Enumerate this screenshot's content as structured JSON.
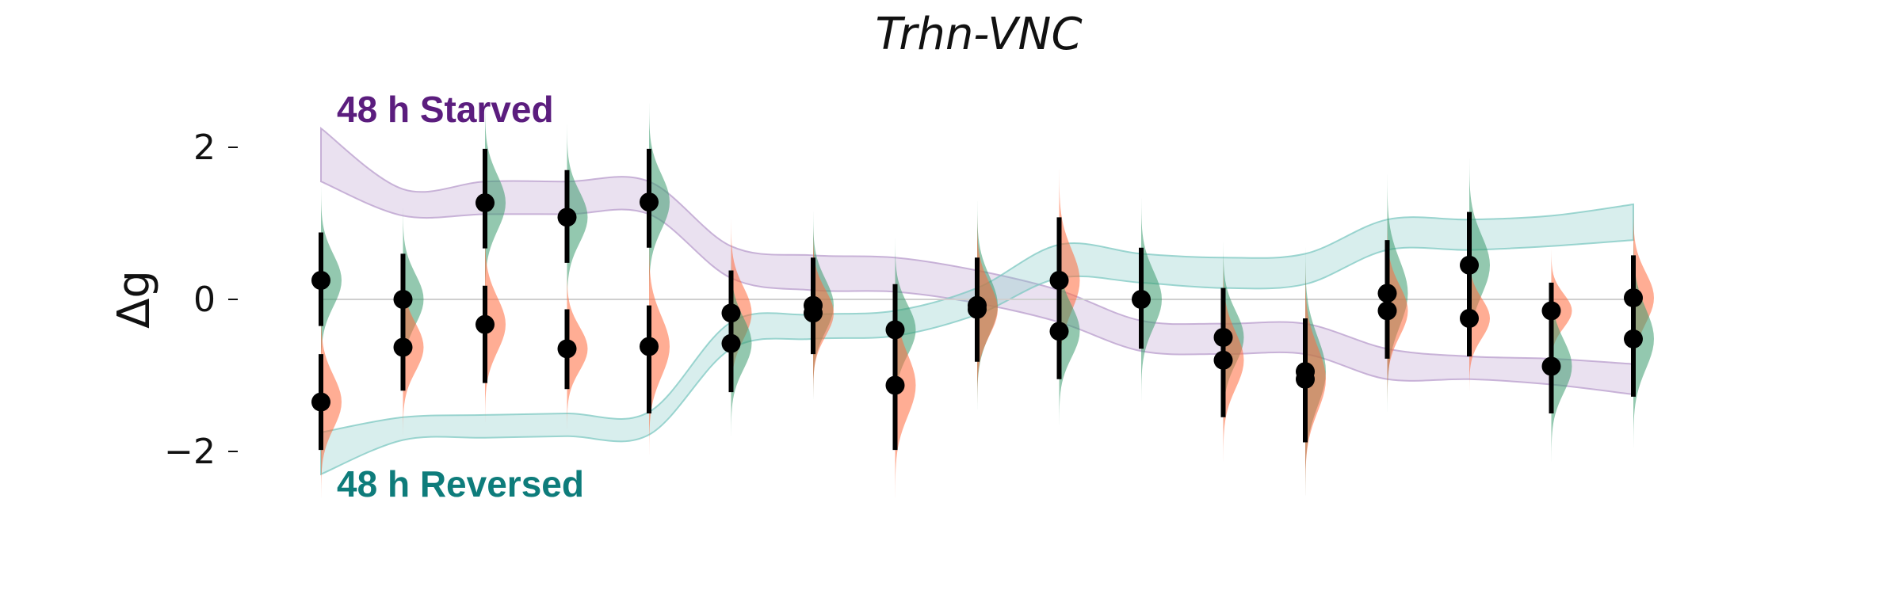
{
  "chart_data": {
    "type": "scatter",
    "title": "Trhn-VNC",
    "ylabel": "Δg",
    "xlabel": "",
    "ylim": [
      -2.6,
      2.9
    ],
    "xlim": [
      0.5,
      17.5
    ],
    "yticks": [
      {
        "value": 2,
        "label": "2"
      },
      {
        "value": 0,
        "label": "0"
      },
      {
        "value": -2,
        "label": "−2"
      }
    ],
    "zero_line": true,
    "annotations": [
      {
        "text": "48 h Starved",
        "color": "#5b1d7e"
      },
      {
        "text": "48 h Reversed",
        "color": "#0e7c7b"
      }
    ],
    "colors": {
      "starved_band": "#b89ccc",
      "reversed_band": "#7ec8c2",
      "green_dist": "#3a9a6e",
      "orange_dist": "#ff6a3d",
      "points": "#000000"
    },
    "bands": [
      {
        "name": "48 h Starved",
        "color": "#b89ccc",
        "x": [
          1,
          2,
          3,
          4,
          5,
          6,
          7,
          8,
          9,
          10,
          11,
          12,
          13,
          14,
          15,
          16,
          17
        ],
        "upper": [
          2.25,
          1.45,
          1.55,
          1.55,
          1.55,
          0.7,
          0.58,
          0.55,
          0.38,
          0.12,
          -0.28,
          -0.32,
          -0.32,
          -0.65,
          -0.75,
          -0.78,
          -0.85
        ],
        "lower": [
          1.55,
          1.1,
          1.12,
          1.12,
          1.12,
          0.28,
          0.12,
          0.1,
          -0.05,
          -0.3,
          -0.68,
          -0.72,
          -0.72,
          -1.05,
          -1.05,
          -1.12,
          -1.25
        ]
      },
      {
        "name": "48 h Reversed",
        "color": "#7ec8c2",
        "x": [
          1,
          2,
          3,
          4,
          5,
          6,
          7,
          8,
          9,
          10,
          11,
          12,
          13,
          14,
          15,
          16,
          17
        ],
        "upper": [
          -1.75,
          -1.55,
          -1.52,
          -1.5,
          -1.48,
          -0.3,
          -0.2,
          -0.15,
          0.15,
          0.72,
          0.6,
          0.55,
          0.6,
          1.05,
          1.05,
          1.1,
          1.25
        ],
        "lower": [
          -2.3,
          -1.85,
          -1.82,
          -1.8,
          -1.78,
          -0.65,
          -0.52,
          -0.48,
          -0.2,
          0.28,
          0.22,
          0.15,
          0.2,
          0.65,
          0.65,
          0.7,
          0.78
        ]
      }
    ],
    "points": [
      {
        "x": 1,
        "series": "green",
        "y": 0.25,
        "lo": -0.35,
        "hi": 0.88
      },
      {
        "x": 1,
        "series": "orange",
        "y": -1.35,
        "lo": -1.98,
        "hi": -0.72
      },
      {
        "x": 2,
        "series": "green",
        "y": 0.0,
        "lo": -0.6,
        "hi": 0.6
      },
      {
        "x": 2,
        "series": "orange",
        "y": -0.63,
        "lo": -1.2,
        "hi": -0.05
      },
      {
        "x": 3,
        "series": "green",
        "y": 1.27,
        "lo": 0.67,
        "hi": 1.98
      },
      {
        "x": 3,
        "series": "orange",
        "y": -0.33,
        "lo": -1.1,
        "hi": 0.18
      },
      {
        "x": 4,
        "series": "green",
        "y": 1.08,
        "lo": 0.48,
        "hi": 1.7
      },
      {
        "x": 4,
        "series": "orange",
        "y": -0.65,
        "lo": -1.18,
        "hi": -0.13
      },
      {
        "x": 5,
        "series": "green",
        "y": 1.28,
        "lo": 0.68,
        "hi": 1.98
      },
      {
        "x": 5,
        "series": "orange",
        "y": -0.62,
        "lo": -1.5,
        "hi": -0.08
      },
      {
        "x": 6,
        "series": "orange",
        "y": -0.18,
        "lo": -0.85,
        "hi": 0.38
      },
      {
        "x": 6,
        "series": "green",
        "y": -0.58,
        "lo": -1.22,
        "hi": 0.0
      },
      {
        "x": 7,
        "series": "green",
        "y": -0.08,
        "lo": -0.68,
        "hi": 0.55
      },
      {
        "x": 7,
        "series": "orange",
        "y": -0.18,
        "lo": -0.72,
        "hi": 0.38
      },
      {
        "x": 8,
        "series": "green",
        "y": -0.4,
        "lo": -1.0,
        "hi": 0.2
      },
      {
        "x": 8,
        "series": "orange",
        "y": -1.13,
        "lo": -1.98,
        "hi": -0.5
      },
      {
        "x": 9,
        "series": "green",
        "y": -0.08,
        "lo": -0.82,
        "hi": 0.55
      },
      {
        "x": 9,
        "series": "orange",
        "y": -0.13,
        "lo": -0.75,
        "hi": 0.48
      },
      {
        "x": 10,
        "series": "orange",
        "y": 0.25,
        "lo": -0.38,
        "hi": 1.08
      },
      {
        "x": 10,
        "series": "green",
        "y": -0.42,
        "lo": -1.05,
        "hi": 0.18
      },
      {
        "x": 11,
        "series": "green",
        "y": 0.0,
        "lo": -0.65,
        "hi": 0.68
      },
      {
        "x": 12,
        "series": "green",
        "y": -0.5,
        "lo": -1.1,
        "hi": 0.15
      },
      {
        "x": 12,
        "series": "orange",
        "y": -0.8,
        "lo": -1.55,
        "hi": -0.22
      },
      {
        "x": 13,
        "series": "green",
        "y": -0.95,
        "lo": -1.88,
        "hi": -0.25
      },
      {
        "x": 13,
        "series": "orange",
        "y": -1.05,
        "lo": -1.88,
        "hi": -0.35
      },
      {
        "x": 14,
        "series": "green",
        "y": 0.08,
        "lo": -0.78,
        "hi": 0.78
      },
      {
        "x": 14,
        "series": "orange",
        "y": -0.15,
        "lo": -0.75,
        "hi": 0.45
      },
      {
        "x": 15,
        "series": "green",
        "y": 0.45,
        "lo": -0.25,
        "hi": 1.15
      },
      {
        "x": 15,
        "series": "orange",
        "y": -0.25,
        "lo": -0.75,
        "hi": 0.2
      },
      {
        "x": 16,
        "series": "orange",
        "y": -0.15,
        "lo": -0.58,
        "hi": 0.22
      },
      {
        "x": 16,
        "series": "green",
        "y": -0.88,
        "lo": -1.5,
        "hi": -0.25
      },
      {
        "x": 17,
        "series": "orange",
        "y": 0.02,
        "lo": -0.62,
        "hi": 0.58
      },
      {
        "x": 17,
        "series": "green",
        "y": -0.52,
        "lo": -1.28,
        "hi": 0.15
      }
    ]
  }
}
